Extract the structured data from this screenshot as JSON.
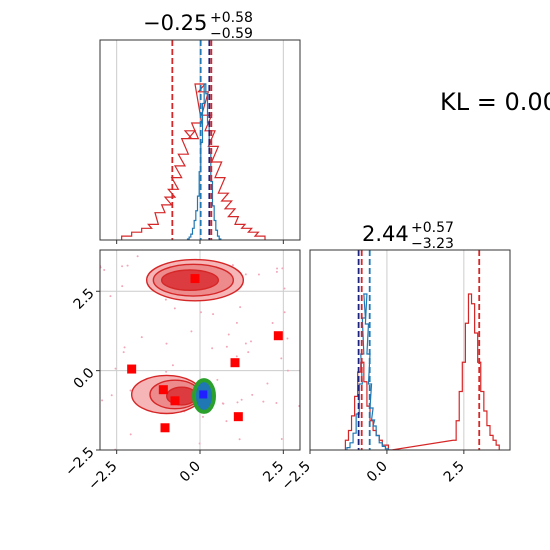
{
  "annotation": {
    "kl_text": "KL = 0.00"
  },
  "colors": {
    "red": "#d62728",
    "blue": "#1f77b4",
    "navy": "#1a237e",
    "green": "#2ca02c",
    "marker_blue": "#1f1fff",
    "marker_red": "#ff0000",
    "grid": "#cccccc",
    "fill_light": "#f6b6b7",
    "fill_mid": "#ec8a8c",
    "fill_dark": "#dc3c3f"
  },
  "titles": {
    "p0": {
      "main": "−0.25",
      "sup": "+0.58",
      "sub": "−0.59"
    },
    "p1": {
      "main": "2.44",
      "sup": "+0.57",
      "sub": "−3.23"
    }
  },
  "chart_data": [
    {
      "panel": "marginal-p0",
      "type": "area",
      "xlim": [
        -3.0,
        3.0
      ],
      "x_ticks": [
        -2.5,
        0.0,
        2.5
      ],
      "grid": true,
      "series": [
        {
          "color": "red",
          "x": [
            -2.2,
            -1.9,
            -1.6,
            -1.4,
            -1.2,
            -1.0,
            -0.9,
            -0.8,
            -0.7,
            -0.6,
            -0.5,
            -0.4,
            -0.3,
            -0.2,
            -0.1,
            0.0,
            0.1,
            0.2,
            0.3,
            0.4,
            0.5,
            0.6,
            0.7,
            0.8,
            0.9,
            1.0,
            1.2,
            1.4,
            1.6,
            1.8
          ],
          "values": [
            1,
            2,
            3,
            4,
            7,
            9,
            11,
            13,
            16,
            19,
            22,
            26,
            28,
            26,
            30,
            40,
            38,
            32,
            28,
            24,
            20,
            16,
            12,
            10,
            8,
            6,
            4,
            3,
            2,
            1
          ]
        },
        {
          "color": "blue",
          "x": [
            -0.35,
            -0.3,
            -0.25,
            -0.2,
            -0.15,
            -0.1,
            -0.05,
            0.0,
            0.05,
            0.1,
            0.15,
            0.2,
            0.25,
            0.3,
            0.35,
            0.4,
            0.45,
            0.5,
            0.55,
            0.6
          ],
          "values": [
            1,
            3,
            6,
            12,
            20,
            30,
            45,
            70,
            100,
            140,
            160,
            150,
            120,
            90,
            60,
            35,
            20,
            10,
            4,
            1
          ]
        }
      ],
      "vlines": [
        {
          "value": -0.83,
          "color": "red"
        },
        {
          "value": 0.02,
          "color": "blue"
        },
        {
          "value": 0.28,
          "color": "navy"
        },
        {
          "value": 0.34,
          "color": "red"
        }
      ]
    },
    {
      "panel": "joint",
      "type": "scatter",
      "xlim": [
        -3.0,
        3.0
      ],
      "ylim": [
        -2.5,
        3.8
      ],
      "x_ticks": [
        -2.5,
        0.0,
        2.5
      ],
      "y_ticks": [
        -2.5,
        0.0,
        2.5
      ],
      "grid": true,
      "red_markers": [
        [
          -0.15,
          2.9
        ],
        [
          -2.05,
          0.05
        ],
        [
          -1.1,
          -0.6
        ],
        [
          -0.75,
          -0.95
        ],
        [
          -1.05,
          -1.8
        ],
        [
          1.05,
          0.25
        ],
        [
          1.15,
          -1.45
        ],
        [
          2.35,
          1.1
        ]
      ],
      "blue_marker": [
        0.1,
        -0.75
      ],
      "contours": [
        {
          "level": "outer",
          "blobs": [
            {
              "cx": -0.15,
              "cy": 2.85,
              "rx": 1.45,
              "ry": 0.65
            },
            {
              "cx": -1.0,
              "cy": -0.75,
              "rx": 1.05,
              "ry": 0.6
            }
          ]
        },
        {
          "level": "mid",
          "blobs": [
            {
              "cx": -0.2,
              "cy": 2.85,
              "rx": 1.2,
              "ry": 0.5
            },
            {
              "cx": -0.75,
              "cy": -0.75,
              "rx": 0.75,
              "ry": 0.45
            }
          ]
        },
        {
          "level": "inner",
          "blobs": [
            {
              "cx": -0.3,
              "cy": 2.85,
              "rx": 0.85,
              "ry": 0.32
            },
            {
              "cx": -0.55,
              "cy": -0.8,
              "rx": 0.45,
              "ry": 0.28
            }
          ]
        }
      ],
      "green_contour": {
        "cx": 0.12,
        "cy": -0.8,
        "rx": 0.3,
        "ry": 0.5
      }
    },
    {
      "panel": "marginal-p1",
      "type": "area",
      "xlim": [
        -2.5,
        4.0
      ],
      "x_ticks": [
        -2.5,
        0.0,
        2.5
      ],
      "grid": true,
      "series": [
        {
          "color": "red",
          "x": [
            -1.3,
            -1.2,
            -1.1,
            -1.0,
            -0.9,
            -0.8,
            -0.7,
            -0.6,
            -0.5,
            -0.4,
            -0.3,
            -0.2,
            -0.1,
            0.0,
            0.1,
            2.2,
            2.3,
            2.4,
            2.5,
            2.6,
            2.7,
            2.8,
            2.9,
            3.0,
            3.1,
            3.2,
            3.3,
            3.4,
            3.5,
            3.6
          ],
          "values": [
            2,
            4,
            7,
            11,
            16,
            18,
            14,
            9,
            6,
            4,
            3,
            2,
            1,
            1,
            0,
            2,
            6,
            12,
            18,
            26,
            32,
            30,
            24,
            18,
            12,
            8,
            5,
            3,
            2,
            1
          ]
        },
        {
          "color": "blue",
          "x": [
            -1.25,
            -1.15,
            -1.05,
            -0.95,
            -0.85,
            -0.8,
            -0.75,
            -0.7,
            -0.65,
            -0.6,
            -0.55,
            -0.5,
            -0.45,
            -0.4,
            -0.3,
            -0.2,
            -0.1,
            0.0,
            0.1
          ],
          "values": [
            2,
            6,
            14,
            30,
            55,
            80,
            110,
            130,
            105,
            80,
            55,
            35,
            25,
            20,
            12,
            6,
            3,
            1,
            0
          ]
        }
      ],
      "vlines": [
        {
          "value": -0.92,
          "color": "navy"
        },
        {
          "value": -0.82,
          "color": "red"
        },
        {
          "value": -0.56,
          "color": "blue"
        },
        {
          "value": 3.0,
          "color": "red"
        }
      ]
    }
  ]
}
